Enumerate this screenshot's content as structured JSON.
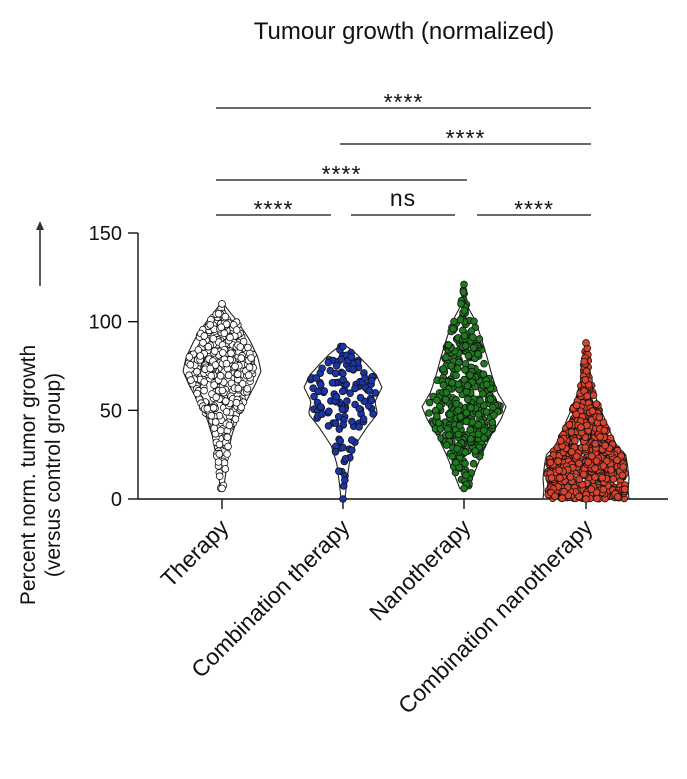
{
  "chart_data": {
    "type": "violin",
    "title": "Tumour growth (normalized)",
    "ylabel": [
      "Percent norm. tumor growth",
      "(versus control group)"
    ],
    "xlabel": "",
    "ylim": [
      0,
      150
    ],
    "yticks": [
      0,
      50,
      100,
      150
    ],
    "ytick_labels": [
      "0",
      "50",
      "100",
      "150"
    ],
    "categories": [
      "Therapy",
      "Combination therapy",
      "Nanotherapy",
      "Combination nanotherapy"
    ],
    "series": [
      {
        "category": "Therapy",
        "color": "#ffffff",
        "n_points": 380,
        "min": 6,
        "max": 110,
        "profile": [
          [
            6,
            0.04
          ],
          [
            15,
            0.1
          ],
          [
            25,
            0.16
          ],
          [
            35,
            0.24
          ],
          [
            45,
            0.38
          ],
          [
            55,
            0.62
          ],
          [
            65,
            0.86
          ],
          [
            72,
            1.0
          ],
          [
            80,
            0.92
          ],
          [
            90,
            0.7
          ],
          [
            100,
            0.4
          ],
          [
            106,
            0.18
          ],
          [
            110,
            0.04
          ]
        ]
      },
      {
        "category": "Combination therapy",
        "color": "#1b35a8",
        "n_points": 130,
        "min": 0,
        "max": 86,
        "profile": [
          [
            0,
            0.05
          ],
          [
            10,
            0.1
          ],
          [
            20,
            0.16
          ],
          [
            30,
            0.3
          ],
          [
            40,
            0.6
          ],
          [
            48,
            0.88
          ],
          [
            55,
            0.82
          ],
          [
            63,
            1.0
          ],
          [
            70,
            0.85
          ],
          [
            76,
            0.6
          ],
          [
            82,
            0.34
          ],
          [
            86,
            0.1
          ]
        ]
      },
      {
        "category": "Nanotherapy",
        "color": "#1f7a1f",
        "n_points": 420,
        "min": 6,
        "max": 121,
        "profile": [
          [
            6,
            0.1
          ],
          [
            15,
            0.25
          ],
          [
            25,
            0.42
          ],
          [
            35,
            0.62
          ],
          [
            45,
            0.88
          ],
          [
            52,
            1.0
          ],
          [
            60,
            0.8
          ],
          [
            70,
            0.66
          ],
          [
            80,
            0.55
          ],
          [
            90,
            0.42
          ],
          [
            100,
            0.28
          ],
          [
            108,
            0.1
          ],
          [
            115,
            0.04
          ],
          [
            121,
            0.02
          ]
        ]
      },
      {
        "category": "Combination nanotherapy",
        "color": "#d9432e",
        "n_points": 700,
        "min": 0,
        "max": 88,
        "profile": [
          [
            0,
            1.0
          ],
          [
            5,
            0.98
          ],
          [
            12,
            1.0
          ],
          [
            20,
            0.96
          ],
          [
            25,
            0.92
          ],
          [
            30,
            0.72
          ],
          [
            38,
            0.56
          ],
          [
            45,
            0.44
          ],
          [
            55,
            0.26
          ],
          [
            65,
            0.14
          ],
          [
            75,
            0.08
          ],
          [
            88,
            0.02
          ]
        ]
      }
    ],
    "comparisons": [
      {
        "from": 0,
        "to": 3,
        "label": "****"
      },
      {
        "from": 1,
        "to": 3,
        "label": "****"
      },
      {
        "from": 0,
        "to": 2,
        "label": "****"
      },
      {
        "from": 0,
        "to": 1,
        "label": "****"
      },
      {
        "from": 1,
        "to": 2,
        "label": "ns"
      },
      {
        "from": 2,
        "to": 3,
        "label": "****"
      }
    ]
  }
}
